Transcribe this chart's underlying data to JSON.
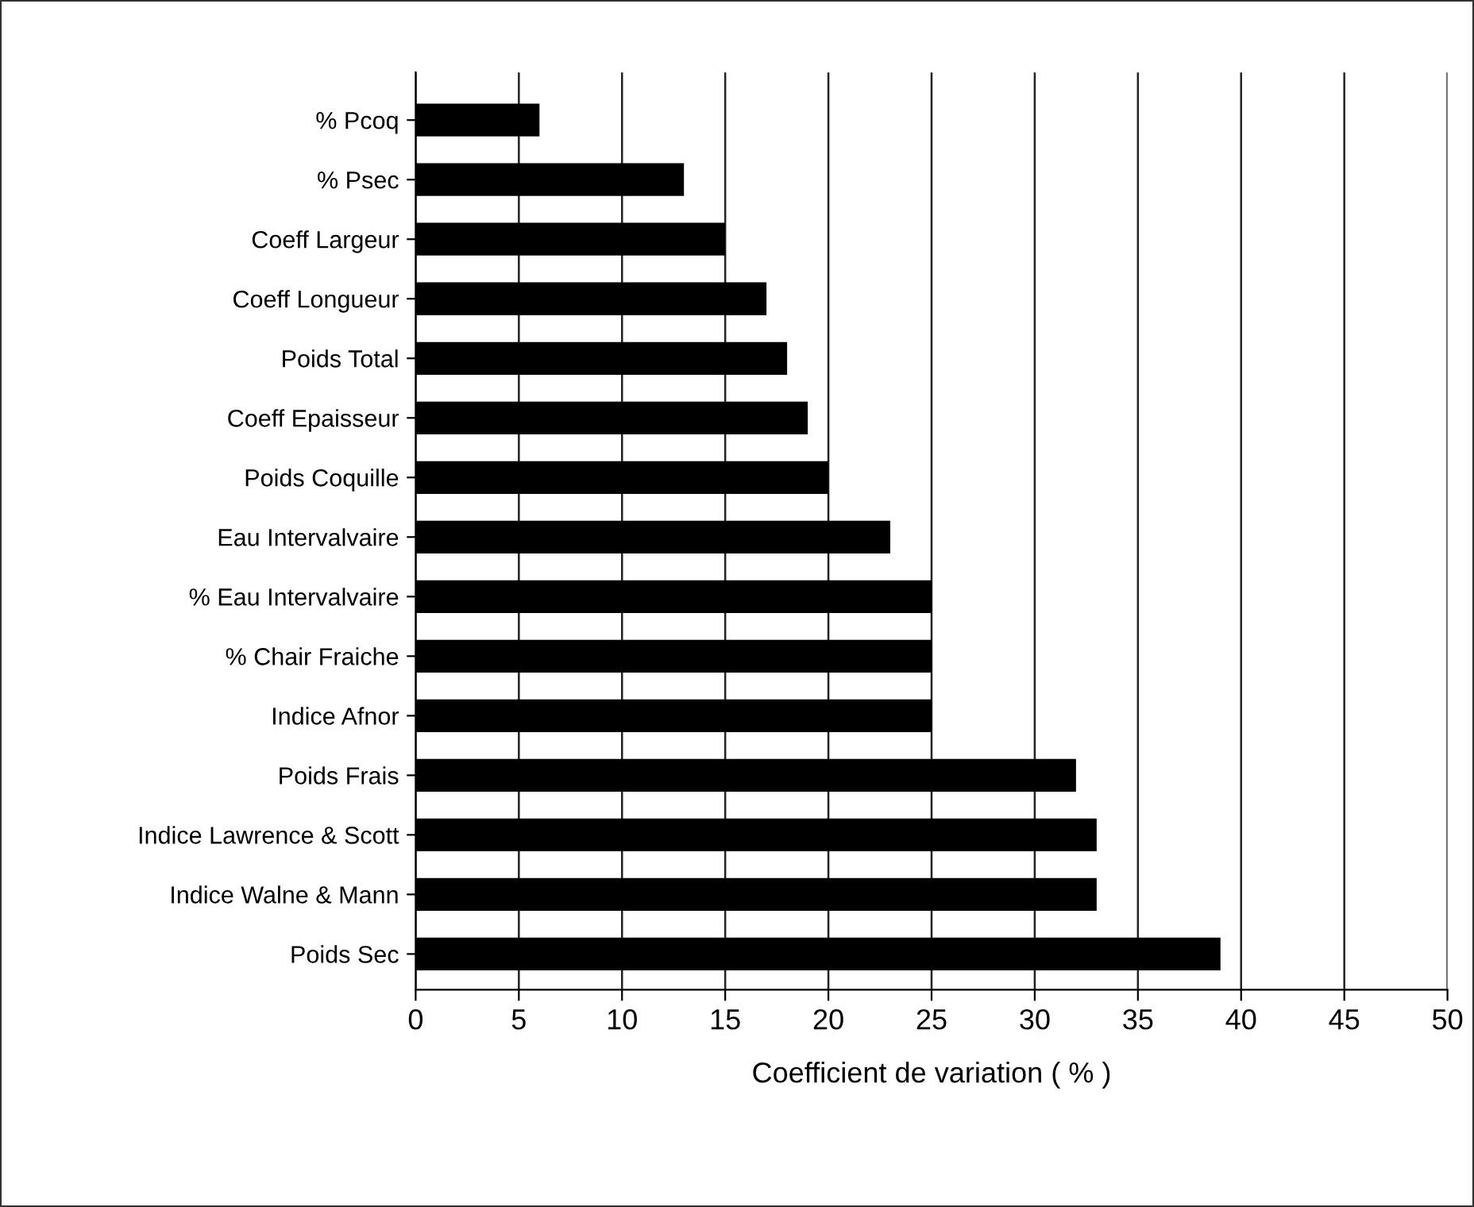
{
  "chart_data": {
    "type": "bar",
    "orientation": "horizontal",
    "xlabel": "Coefficient de variation ( % )",
    "categories": [
      "% Pcoq",
      "% Psec",
      "Coeff Largeur",
      "Coeff Longueur",
      "Poids Total",
      "Coeff Epaisseur",
      "Poids Coquille",
      "Eau Intervalvaire",
      "% Eau Intervalvaire",
      "% Chair Fraiche",
      "Indice Afnor",
      "Poids Frais",
      "Indice Lawrence & Scott",
      "Indice Walne & Mann",
      "Poids Sec"
    ],
    "values": [
      6,
      13,
      15,
      17,
      18,
      19,
      20,
      23,
      25,
      25,
      25,
      32,
      33,
      33,
      39
    ],
    "color": "#000000",
    "xlim": [
      0,
      50
    ],
    "xticks": [
      0,
      5,
      10,
      15,
      20,
      25,
      30,
      35,
      40,
      45,
      50
    ],
    "grid": "x"
  }
}
